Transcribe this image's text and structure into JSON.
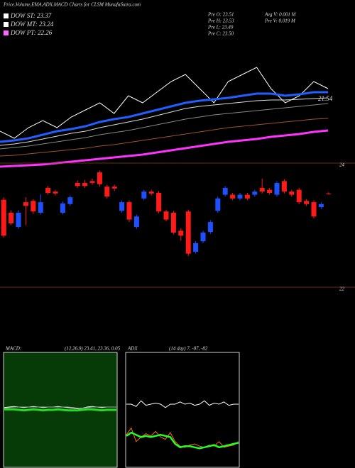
{
  "header": {
    "title": "Price,Volume,EMA,ADX,MACD Charts for CLSM MunafaSutra.com",
    "legend": [
      {
        "text": "DOW ST: 23.37",
        "color": "#ffffff"
      },
      {
        "text": "DOW MT: 23.24",
        "color": "#ffffff"
      },
      {
        "text": "DOW PT: 22.26",
        "color": "#ff66ff"
      }
    ],
    "info": [
      "Pre  O: 23.51",
      "Pre  H: 23.53",
      "Pre  L: 23.49",
      "Pre  C: 23.50",
      "Avg V: 0.001 M",
      "Pre  V: 0.019 M"
    ]
  },
  "chart_data": [
    {
      "type": "line",
      "label": "21.54",
      "ylim": [
        19.5,
        23
      ],
      "series": [
        {
          "color": "#ffffff",
          "width": 1,
          "values": [
            20.5,
            20.3,
            20.6,
            20.8,
            20.6,
            20.9,
            21.1,
            21.3,
            21.0,
            21.5,
            21.3,
            21.6,
            21.9,
            22.1,
            21.7,
            21.3,
            21.9,
            22.1,
            22.3,
            21.7,
            21.3,
            21.5,
            21.9,
            21.7
          ]
        },
        {
          "color": "#1f5fff",
          "width": 3,
          "values": [
            20.2,
            20.24,
            20.3,
            20.4,
            20.5,
            20.56,
            20.64,
            20.76,
            20.84,
            20.9,
            21.0,
            21.1,
            21.2,
            21.3,
            21.36,
            21.4,
            21.44,
            21.5,
            21.56,
            21.56,
            21.5,
            21.54,
            21.6,
            21.6
          ]
        },
        {
          "color": "#dddddd",
          "width": 1,
          "values": [
            20.1,
            20.14,
            20.2,
            20.28,
            20.36,
            20.44,
            20.5,
            20.6,
            20.68,
            20.76,
            20.84,
            20.94,
            21.04,
            21.14,
            21.2,
            21.24,
            21.28,
            21.32,
            21.36,
            21.38,
            21.38,
            21.4,
            21.42,
            21.44
          ]
        },
        {
          "color": "#888888",
          "width": 1,
          "values": [
            20.0,
            20.04,
            20.08,
            20.14,
            20.2,
            20.26,
            20.32,
            20.4,
            20.46,
            20.52,
            20.6,
            20.68,
            20.76,
            20.84,
            20.9,
            20.96,
            21.0,
            21.04,
            21.08,
            21.12,
            21.16,
            21.2,
            21.24,
            21.28
          ]
        },
        {
          "color": "#a0522d",
          "width": 1,
          "values": [
            19.8,
            19.82,
            19.86,
            19.9,
            19.94,
            19.98,
            20.02,
            20.08,
            20.12,
            20.18,
            20.24,
            20.3,
            20.36,
            20.42,
            20.48,
            20.54,
            20.6,
            20.64,
            20.68,
            20.72,
            20.76,
            20.8,
            20.84,
            20.86
          ]
        },
        {
          "color": "#ff33ff",
          "width": 3,
          "values": [
            19.5,
            19.52,
            19.54,
            19.56,
            19.6,
            19.64,
            19.68,
            19.72,
            19.76,
            19.8,
            19.84,
            19.9,
            19.96,
            20.02,
            20.08,
            20.14,
            20.2,
            20.24,
            20.28,
            20.34,
            20.38,
            20.42,
            20.48,
            20.52
          ]
        }
      ]
    },
    {
      "type": "candlestick",
      "ylim": [
        22,
        24
      ],
      "yticks": [
        22,
        24
      ],
      "grid": true,
      "up_color": "#1e50ff",
      "down_color": "#ff1a1a",
      "open": [
        23.41,
        23.2,
        22.97,
        23.37,
        23.39,
        23.2,
        23.6,
        23.54,
        23.2,
        23.34,
        23.68,
        23.68,
        23.71,
        23.85,
        23.62,
        23.62,
        23.23,
        23.37,
        22.97,
        23.43,
        23.54,
        23.52,
        23.22,
        23.2,
        22.91,
        23.22,
        22.57,
        22.74,
        22.89,
        23.23,
        23.49,
        23.49,
        23.43,
        23.49,
        23.49,
        23.6,
        23.57,
        23.49,
        23.71,
        23.54,
        23.57,
        23.39,
        23.37,
        23.29,
        23.51
      ],
      "high": [
        23.45,
        23.24,
        23.24,
        23.45,
        23.42,
        23.5,
        23.63,
        23.57,
        23.38,
        23.48,
        23.72,
        23.73,
        23.75,
        23.88,
        23.65,
        23.65,
        23.4,
        23.4,
        23.17,
        23.57,
        23.57,
        23.55,
        23.25,
        23.23,
        22.95,
        23.25,
        22.74,
        22.91,
        23.08,
        23.46,
        23.63,
        23.52,
        23.52,
        23.52,
        23.57,
        23.75,
        23.6,
        23.71,
        23.74,
        23.57,
        23.6,
        23.42,
        23.4,
        23.37,
        23.53
      ],
      "low": [
        22.8,
        23.0,
        22.94,
        23.0,
        23.18,
        23.17,
        23.49,
        23.48,
        23.17,
        23.31,
        23.6,
        23.6,
        23.65,
        23.62,
        23.43,
        23.55,
        23.2,
        23.05,
        22.94,
        23.4,
        23.48,
        23.19,
        23.06,
        22.85,
        22.75,
        22.5,
        22.54,
        22.71,
        22.86,
        23.2,
        23.46,
        23.4,
        23.4,
        23.4,
        23.46,
        23.51,
        23.49,
        23.46,
        23.51,
        23.46,
        23.34,
        23.31,
        23.11,
        23.26,
        23.49
      ],
      "close": [
        22.83,
        23.03,
        23.2,
        23.31,
        23.22,
        23.37,
        23.52,
        23.51,
        23.35,
        23.45,
        23.63,
        23.63,
        23.68,
        23.66,
        23.46,
        23.59,
        23.37,
        23.09,
        23.14,
        23.54,
        23.51,
        23.22,
        23.09,
        22.88,
        22.83,
        22.54,
        22.71,
        22.88,
        23.05,
        23.43,
        23.6,
        23.43,
        23.49,
        23.43,
        23.54,
        23.54,
        23.52,
        23.68,
        23.54,
        23.49,
        23.37,
        23.34,
        23.14,
        23.34,
        23.5
      ]
    },
    {
      "type": "line",
      "title": "MACD:",
      "subtitle": "(12,26,9) 23.41, 23.36, 0.05",
      "ylim": [
        -1,
        1
      ],
      "series": [
        {
          "color": "#ffffff",
          "width": 1,
          "values": [
            0.04,
            0.05,
            0.06,
            0.05,
            0.04,
            0.05,
            0.06,
            0.05,
            0.04,
            0.05,
            0.05,
            0.06,
            0.05,
            0.04,
            0.03,
            0.02,
            0.03,
            0.05,
            0.06,
            0.05,
            0.04,
            0.05,
            0.05,
            0.05
          ]
        },
        {
          "color": "#aaaaaa",
          "width": 1,
          "values": [
            0.03,
            0.04,
            0.05,
            0.05,
            0.05,
            0.05,
            0.05,
            0.05,
            0.05,
            0.05,
            0.05,
            0.05,
            0.05,
            0.05,
            0.04,
            0.03,
            0.03,
            0.04,
            0.05,
            0.05,
            0.05,
            0.05,
            0.05,
            0.05
          ]
        },
        {
          "color": "#22dd22",
          "width": 3,
          "values": [
            0.01,
            0.01,
            0.01,
            0.0,
            -0.01,
            0.0,
            0.01,
            0.0,
            -0.01,
            0.0,
            0.0,
            0.01,
            0.0,
            -0.01,
            -0.01,
            -0.01,
            0.0,
            0.01,
            0.01,
            0.0,
            -0.01,
            0.0,
            0.0,
            0.0
          ]
        }
      ]
    },
    {
      "type": "line",
      "title": "ADX",
      "subtitle": "(14 day) 7, -87, -82",
      "ylim": [
        0,
        100
      ],
      "series": [
        {
          "color": "#ffffff",
          "width": 1,
          "values": [
            55,
            55,
            53,
            58,
            54,
            55,
            56,
            55,
            52,
            55,
            55,
            57,
            55,
            56,
            54,
            55,
            58,
            54,
            56,
            55,
            57,
            54,
            55,
            55
          ]
        },
        {
          "color": "#ff6a00",
          "width": 1,
          "values": [
            28,
            34,
            22,
            26,
            29,
            27,
            31,
            26,
            24,
            30,
            22,
            18,
            17,
            19,
            20,
            18,
            17,
            19,
            18,
            22,
            17,
            18,
            19,
            22
          ]
        },
        {
          "color": "#22ff22",
          "width": 2.5,
          "values": [
            27,
            30,
            28,
            26,
            27,
            26,
            27,
            28,
            27,
            26,
            20,
            17,
            18,
            18,
            17,
            16,
            17,
            18,
            19,
            17,
            18,
            19,
            20,
            21
          ]
        }
      ]
    }
  ]
}
